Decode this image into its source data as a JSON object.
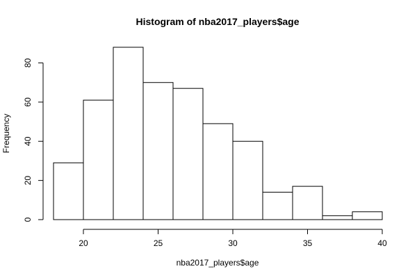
{
  "chart_data": {
    "type": "bar",
    "title": "Histogram of nba2017_players$age",
    "xlabel": "nba2017_players$age",
    "ylabel": "Frequency",
    "bins": [
      {
        "start": 18,
        "end": 20,
        "count": 29
      },
      {
        "start": 20,
        "end": 22,
        "count": 61
      },
      {
        "start": 22,
        "end": 24,
        "count": 88
      },
      {
        "start": 24,
        "end": 26,
        "count": 70
      },
      {
        "start": 26,
        "end": 28,
        "count": 67
      },
      {
        "start": 28,
        "end": 30,
        "count": 49
      },
      {
        "start": 30,
        "end": 32,
        "count": 40
      },
      {
        "start": 32,
        "end": 34,
        "count": 14
      },
      {
        "start": 34,
        "end": 36,
        "count": 17
      },
      {
        "start": 36,
        "end": 38,
        "count": 2
      },
      {
        "start": 38,
        "end": 40,
        "count": 4
      }
    ],
    "xlim": [
      18,
      40
    ],
    "ylim": [
      0,
      88
    ],
    "x_ticks": [
      20,
      25,
      30,
      35,
      40
    ],
    "y_ticks": [
      0,
      20,
      40,
      60,
      80
    ],
    "grid": false,
    "bar_fill": "#ffffff",
    "bar_stroke": "#000000"
  }
}
